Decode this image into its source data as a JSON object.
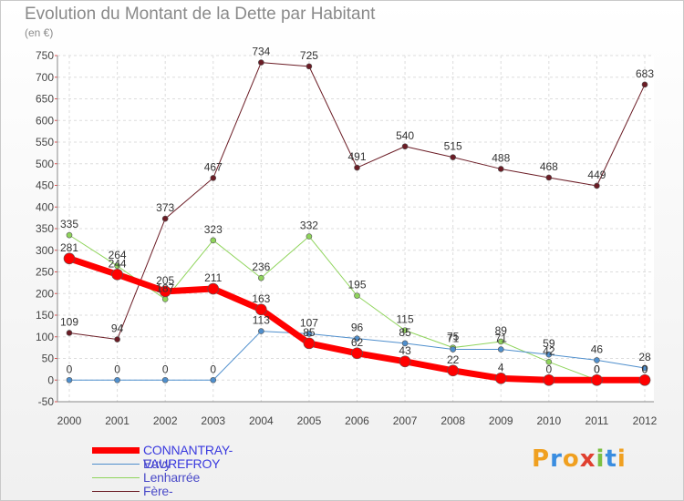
{
  "title": "Evolution du Montant de la Dette par Habitant",
  "unit_label": "(en €)",
  "logo": {
    "text": "Proxiti",
    "letters": [
      "P",
      "r",
      "o",
      "x",
      "i",
      "t",
      "i"
    ],
    "colors": [
      "#f0a020",
      "#3a8de0",
      "#f0a020",
      "#e04030",
      "#7bc043",
      "#3a8de0",
      "#f0a020"
    ]
  },
  "chart_data": {
    "type": "line",
    "title": "Evolution du Montant de la Dette par Habitant",
    "ylabel": "(en €)",
    "xlabel": "",
    "x": [
      "2000",
      "2001",
      "2002",
      "2003",
      "2004",
      "2005",
      "2006",
      "2007",
      "2008",
      "2009",
      "2010",
      "2011",
      "2012"
    ],
    "ylim": [
      -50,
      750
    ],
    "yticks": [
      -50,
      0,
      50,
      100,
      150,
      200,
      250,
      300,
      350,
      400,
      450,
      500,
      550,
      600,
      650,
      700,
      750
    ],
    "grid": true,
    "legend_position": "bottom-left",
    "series": [
      {
        "name": "Fère-Champenoise",
        "color": "#6b1c25",
        "width": 1,
        "values": [
          109,
          94,
          373,
          467,
          734,
          725,
          491,
          540,
          515,
          488,
          468,
          449,
          683
        ]
      },
      {
        "name": "Lenharrée",
        "color": "#8fd45b",
        "width": 1,
        "values": [
          335,
          264,
          187,
          323,
          236,
          332,
          195,
          115,
          75,
          89,
          42,
          0,
          0
        ]
      },
      {
        "name": "Euvy",
        "color": "#4f8fcd",
        "width": 1,
        "values": [
          0,
          0,
          0,
          0,
          113,
          107,
          96,
          85,
          71,
          71,
          59,
          46,
          28
        ]
      },
      {
        "name": "CONNANTRAY-VAUREFROY",
        "color": "#ff0000",
        "width": 7,
        "values": [
          281,
          244,
          205,
          211,
          163,
          85,
          62,
          43,
          22,
          4,
          0,
          0,
          0
        ]
      }
    ]
  },
  "legend": [
    {
      "name": "CONNANTRAY-VAUREFROY",
      "color": "#ff0000",
      "width": 7
    },
    {
      "name": "Euvy",
      "color": "#4f8fcd",
      "width": 1
    },
    {
      "name": "Lenharrée",
      "color": "#8fd45b",
      "width": 1
    },
    {
      "name": "Fère-Champenoise",
      "color": "#6b1c25",
      "width": 1
    }
  ]
}
